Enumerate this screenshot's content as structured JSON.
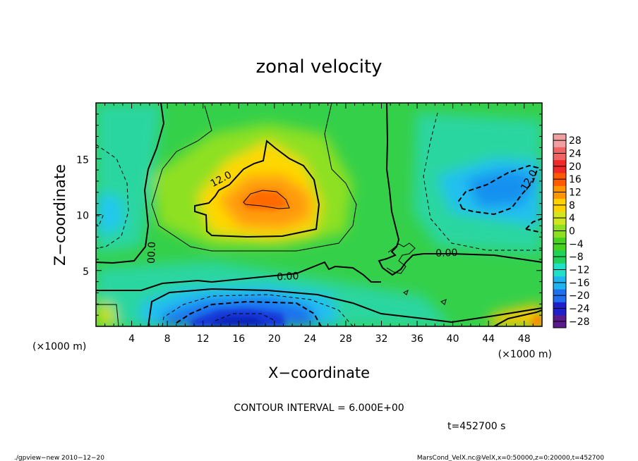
{
  "chart_data": {
    "type": "heatmap",
    "title": "zonal velocity",
    "xlabel": "X−coordinate",
    "ylabel": "Z−coordinate",
    "x_unit_left": "(×1000 m)",
    "x_unit_right": "(×1000 m)",
    "xlim": [
      0,
      50
    ],
    "ylim": [
      0,
      20
    ],
    "xticks": [
      4,
      8,
      12,
      16,
      20,
      24,
      28,
      32,
      36,
      40,
      44,
      48
    ],
    "yticks": [
      5,
      10,
      15
    ],
    "colorbar": {
      "ticks": [
        28,
        24,
        20,
        16,
        12,
        8,
        4,
        0,
        -4,
        -8,
        -12,
        -16,
        -20,
        -24,
        -28
      ],
      "tick_labels": [
        "28",
        "24",
        "20",
        "16",
        "12",
        "8",
        "4",
        "0",
        "−4",
        "−8",
        "−12",
        "−16",
        "−20",
        "−24",
        "−28"
      ],
      "range": [
        -30,
        30
      ],
      "colors": [
        "#5a1a8c",
        "#1f1fcc",
        "#1f6ff0",
        "#1fb4f0",
        "#1fe0c8",
        "#1fd25a",
        "#46d21f",
        "#8ce01f",
        "#d2e61f",
        "#ffd200",
        "#ff9600",
        "#ff5a00",
        "#f02828",
        "#f06464",
        "#f0a0a0"
      ]
    },
    "contour_interval_text": "CONTOUR INTERVAL = 6.000E+00",
    "time_text": "t=452700 s",
    "contour_labels": [
      {
        "text": "12.0",
        "x": 14,
        "z": 13.2,
        "angle": -28
      },
      {
        "text": "00.0",
        "x": 6.2,
        "z": 6.6,
        "angle": -88
      },
      {
        "text": "0.00",
        "x": 21.5,
        "z": 4.5,
        "angle": -3
      },
      {
        "text": "0.00",
        "x": 39.3,
        "z": 6.6,
        "angle": -2
      },
      {
        "text": "12.0",
        "x": 48.5,
        "z": 13.1,
        "angle": -60
      }
    ],
    "features": [
      {
        "kind": "jet",
        "value": 18,
        "x": 20,
        "z": 11.5
      },
      {
        "kind": "jet",
        "value": -22,
        "x": 19,
        "z": 1.5
      },
      {
        "kind": "jet",
        "value": -14,
        "x": 46.5,
        "z": 12
      },
      {
        "kind": "jet",
        "value": -9,
        "x": 0.8,
        "z": 10.5
      },
      {
        "kind": "jet",
        "value": 14,
        "x": 49.5,
        "z": 0.8
      }
    ]
  },
  "footer": {
    "left": "./gpview−new   2010−12−20",
    "right": "MarsCond_VelX.nc@VelX,x=0:50000,z=0:20000,t=452700"
  }
}
